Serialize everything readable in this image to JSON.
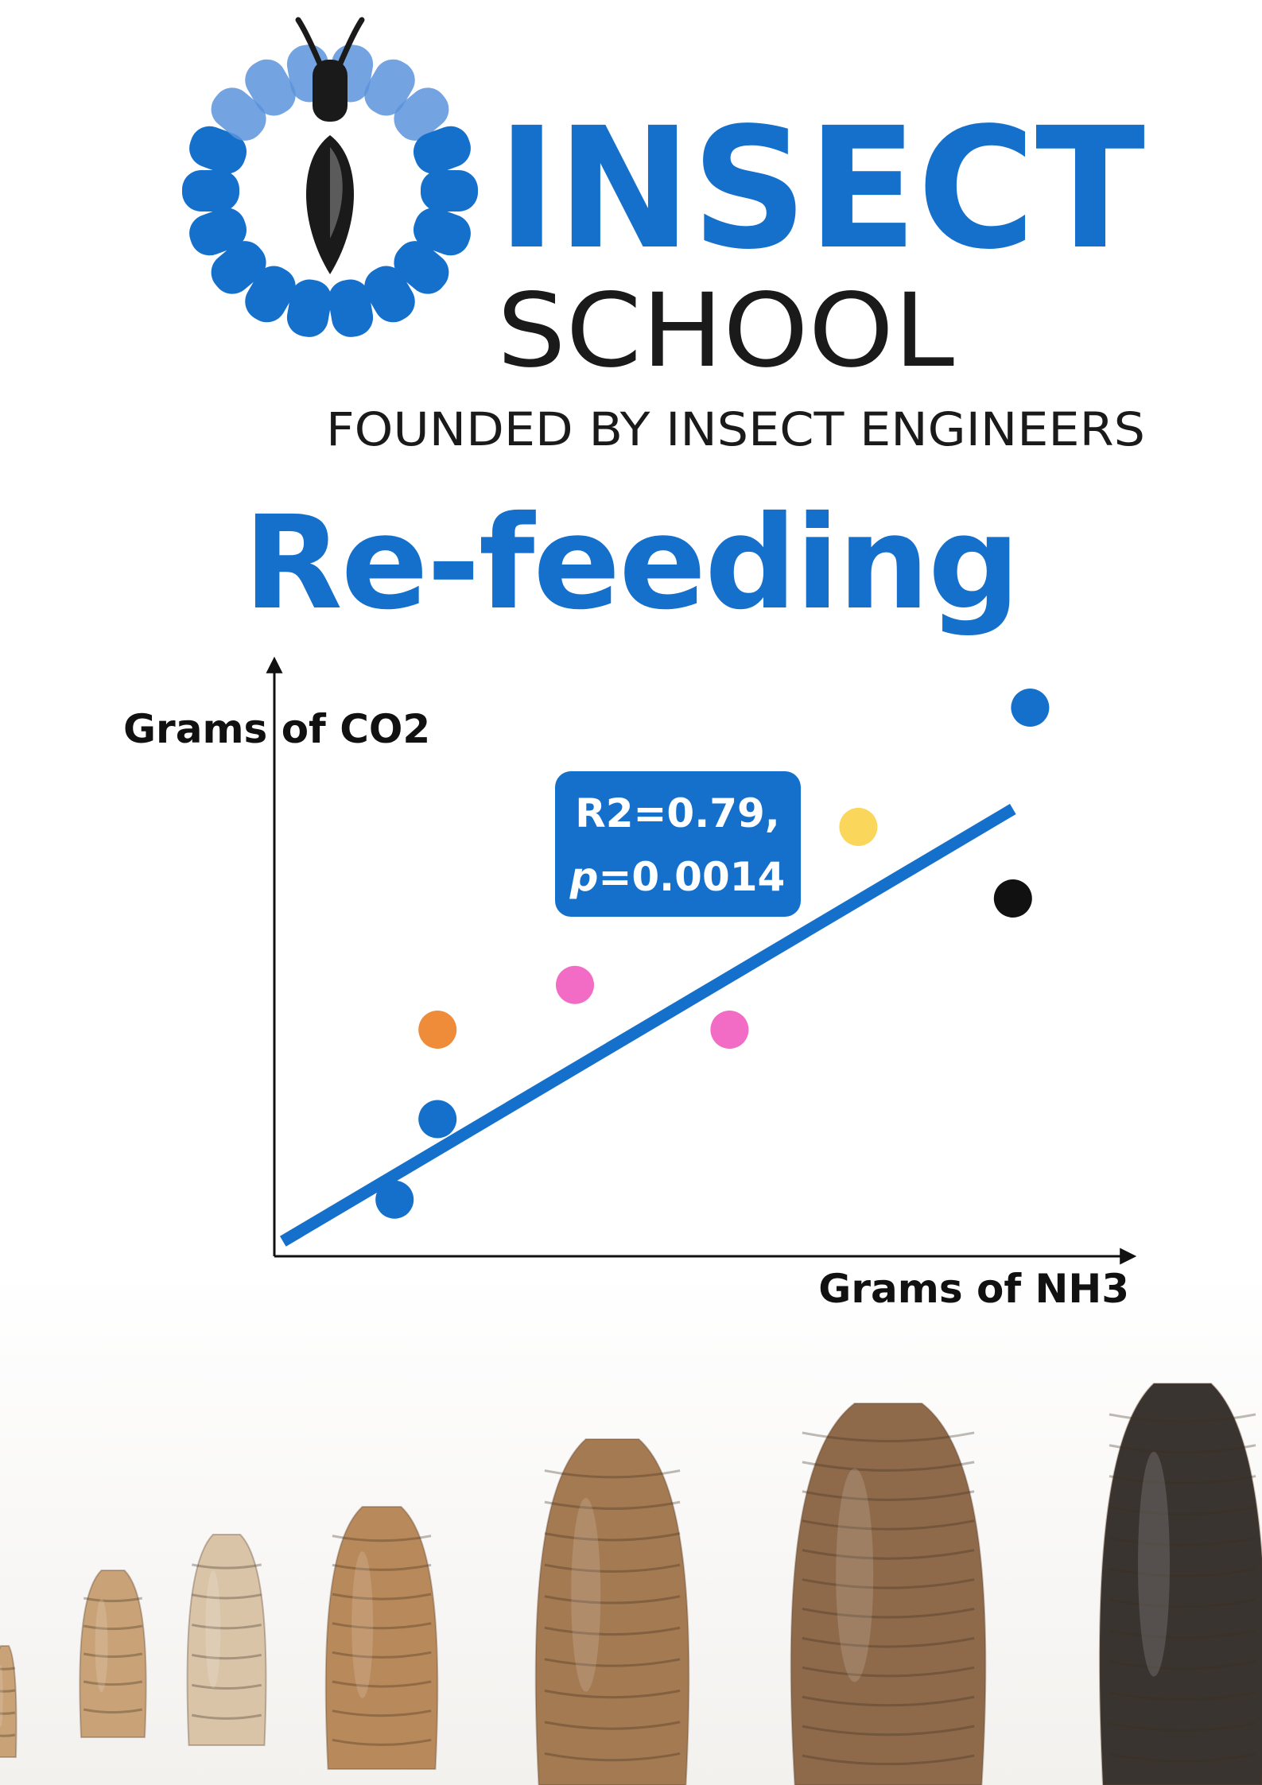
{
  "brand": {
    "name_line1": "INSECT",
    "name_line2": "SCHOOL",
    "tagline": "FOUNDED BY INSECT ENGINEERS",
    "logo_icon": "insect-sun-logo-icon",
    "color_primary": "#1570cc",
    "color_light": "#5a93db",
    "color_dark": "#1a1a1a"
  },
  "page": {
    "title": "Re-feeding"
  },
  "chart_data": {
    "type": "scatter",
    "xlabel": "Grams of NH3",
    "ylabel": "Grams of CO2",
    "xlim": [
      0,
      10
    ],
    "ylim": [
      0,
      10
    ],
    "tick_labels_shown": false,
    "grid": false,
    "legend": "none",
    "points": [
      {
        "x": 1.4,
        "y": 0.95,
        "color": "#1570cc"
      },
      {
        "x": 1.9,
        "y": 2.3,
        "color": "#1570cc"
      },
      {
        "x": 1.9,
        "y": 3.8,
        "color": "#ef8c3a"
      },
      {
        "x": 3.5,
        "y": 4.55,
        "color": "#f26bc4"
      },
      {
        "x": 5.3,
        "y": 3.8,
        "color": "#f26bc4"
      },
      {
        "x": 6.8,
        "y": 7.2,
        "color": "#fad75a"
      },
      {
        "x": 8.6,
        "y": 6.0,
        "color": "#111111"
      },
      {
        "x": 8.8,
        "y": 9.2,
        "color": "#1570cc"
      }
    ],
    "fit_line": {
      "x": [
        0.1,
        8.6
      ],
      "y": [
        0.25,
        7.5
      ],
      "color": "#1570cc"
    },
    "annotation": {
      "line1": "R2=0.79,",
      "line2_italic": "p",
      "line2_rest": "=0.0014"
    }
  },
  "illustration": {
    "subject": "larvae-growth-stages-icon",
    "colors": [
      "#c9a277",
      "#d9c4a8",
      "#b8895a",
      "#a47a52",
      "#8e6a4a",
      "#3a3430"
    ]
  }
}
